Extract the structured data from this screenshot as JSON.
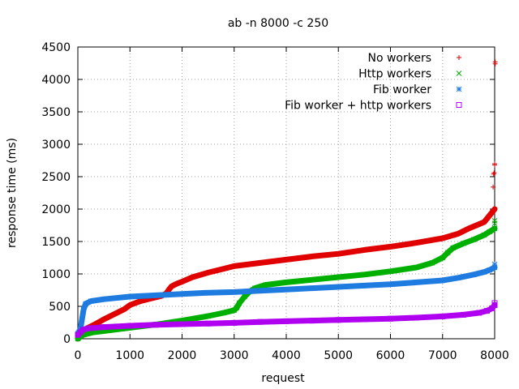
{
  "chart_data": {
    "type": "scatter",
    "title": "ab -n 8000 -c 250",
    "xlabel": "request",
    "ylabel": "response time (ms)",
    "xlim": [
      0,
      8000
    ],
    "ylim": [
      0,
      4500
    ],
    "xticks": [
      0,
      1000,
      2000,
      3000,
      4000,
      5000,
      6000,
      7000,
      8000
    ],
    "yticks": [
      0,
      500,
      1000,
      1500,
      2000,
      2500,
      3000,
      3500,
      4000,
      4500
    ],
    "grid": true,
    "legend_position": "top-right",
    "series": [
      {
        "name": "No workers",
        "marker": "plus",
        "color": "#e00000",
        "points": [
          [
            0,
            0
          ],
          [
            50,
            90
          ],
          [
            100,
            130
          ],
          [
            200,
            170
          ],
          [
            300,
            210
          ],
          [
            500,
            300
          ],
          [
            700,
            380
          ],
          [
            900,
            460
          ],
          [
            1000,
            520
          ],
          [
            1200,
            580
          ],
          [
            1400,
            620
          ],
          [
            1600,
            660
          ],
          [
            1700,
            700
          ],
          [
            1750,
            760
          ],
          [
            1800,
            810
          ],
          [
            1900,
            850
          ],
          [
            2000,
            880
          ],
          [
            2200,
            950
          ],
          [
            2500,
            1020
          ],
          [
            2800,
            1080
          ],
          [
            3000,
            1120
          ],
          [
            3500,
            1170
          ],
          [
            4000,
            1220
          ],
          [
            4500,
            1270
          ],
          [
            5000,
            1310
          ],
          [
            5500,
            1370
          ],
          [
            6000,
            1420
          ],
          [
            6500,
            1480
          ],
          [
            7000,
            1550
          ],
          [
            7300,
            1620
          ],
          [
            7500,
            1700
          ],
          [
            7800,
            1800
          ],
          [
            7900,
            1900
          ],
          [
            8000,
            2000
          ]
        ],
        "outliers": [
          [
            7970,
            2340
          ],
          [
            7980,
            2540
          ],
          [
            7990,
            2560
          ],
          [
            8000,
            2680
          ],
          [
            8000,
            2700
          ],
          [
            8010,
            4240
          ],
          [
            8010,
            4270
          ]
        ]
      },
      {
        "name": "Http workers",
        "marker": "cross",
        "color": "#00b000",
        "points": [
          [
            0,
            0
          ],
          [
            100,
            60
          ],
          [
            300,
            100
          ],
          [
            600,
            130
          ],
          [
            1000,
            170
          ],
          [
            1500,
            220
          ],
          [
            2000,
            280
          ],
          [
            2500,
            350
          ],
          [
            2800,
            400
          ],
          [
            3000,
            440
          ],
          [
            3050,
            480
          ],
          [
            3100,
            550
          ],
          [
            3200,
            650
          ],
          [
            3300,
            730
          ],
          [
            3400,
            780
          ],
          [
            3600,
            830
          ],
          [
            4000,
            870
          ],
          [
            4500,
            910
          ],
          [
            5000,
            950
          ],
          [
            5500,
            990
          ],
          [
            6000,
            1040
          ],
          [
            6500,
            1100
          ],
          [
            6800,
            1170
          ],
          [
            7000,
            1250
          ],
          [
            7100,
            1330
          ],
          [
            7200,
            1400
          ],
          [
            7400,
            1470
          ],
          [
            7600,
            1530
          ],
          [
            7800,
            1600
          ],
          [
            7900,
            1650
          ],
          [
            8000,
            1700
          ]
        ],
        "outliers": [
          [
            8000,
            1780
          ],
          [
            8000,
            1820
          ]
        ]
      },
      {
        "name": "Fib worker",
        "marker": "star",
        "color": "#1e7be0",
        "points": [
          [
            0,
            80
          ],
          [
            50,
            150
          ],
          [
            80,
            300
          ],
          [
            110,
            450
          ],
          [
            150,
            540
          ],
          [
            250,
            580
          ],
          [
            500,
            610
          ],
          [
            1000,
            650
          ],
          [
            1500,
            670
          ],
          [
            2000,
            690
          ],
          [
            2500,
            710
          ],
          [
            3000,
            720
          ],
          [
            3500,
            740
          ],
          [
            4000,
            760
          ],
          [
            4500,
            780
          ],
          [
            5000,
            800
          ],
          [
            5500,
            820
          ],
          [
            6000,
            840
          ],
          [
            6500,
            870
          ],
          [
            7000,
            900
          ],
          [
            7300,
            940
          ],
          [
            7600,
            990
          ],
          [
            7800,
            1030
          ],
          [
            7900,
            1060
          ],
          [
            8000,
            1100
          ]
        ],
        "outliers": [
          [
            8000,
            1150
          ]
        ]
      },
      {
        "name": "Fib worker + http workers",
        "marker": "square",
        "color": "#b000f0",
        "points": [
          [
            0,
            60
          ],
          [
            50,
            100
          ],
          [
            100,
            140
          ],
          [
            200,
            160
          ],
          [
            500,
            180
          ],
          [
            1000,
            200
          ],
          [
            1500,
            215
          ],
          [
            2000,
            225
          ],
          [
            2500,
            235
          ],
          [
            3000,
            245
          ],
          [
            3500,
            260
          ],
          [
            4000,
            270
          ],
          [
            4500,
            280
          ],
          [
            5000,
            290
          ],
          [
            5500,
            300
          ],
          [
            6000,
            310
          ],
          [
            6500,
            325
          ],
          [
            7000,
            345
          ],
          [
            7400,
            370
          ],
          [
            7700,
            400
          ],
          [
            7850,
            430
          ],
          [
            7950,
            470
          ],
          [
            8000,
            520
          ]
        ],
        "outliers": [
          [
            8000,
            550
          ]
        ]
      }
    ]
  }
}
